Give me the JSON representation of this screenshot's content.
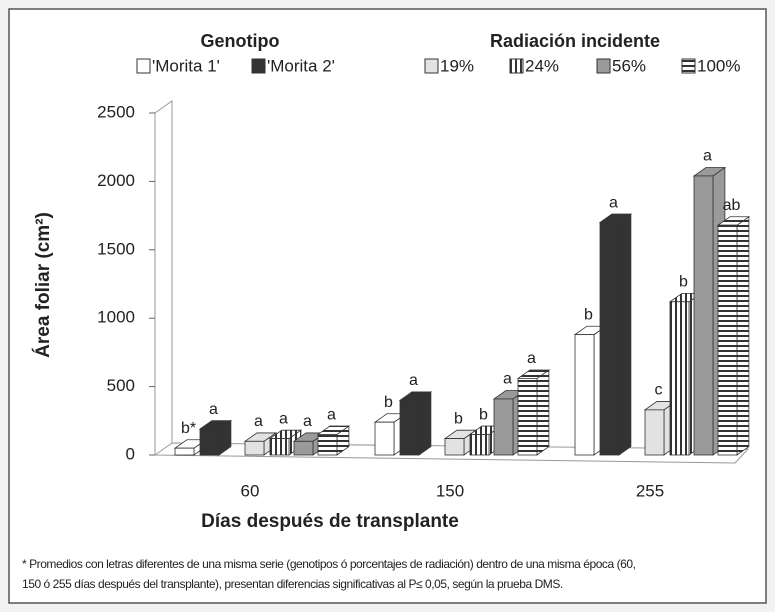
{
  "chart_data": {
    "type": "bar3d",
    "y_label": "Área foliar (cm²)",
    "x_label": "Días después de transplante",
    "legend_titles": [
      "Genotipo",
      "Radiación incidente"
    ],
    "categories": [
      "60",
      "150",
      "255"
    ],
    "ylim": [
      0,
      2500
    ],
    "yticks": [
      0,
      500,
      1000,
      1500,
      2000,
      2500
    ],
    "series": [
      {
        "name": "'Morita 1'",
        "color": "#ffffff",
        "values": [
          50,
          240,
          880
        ],
        "letters": [
          "b*",
          "b",
          "b"
        ]
      },
      {
        "name": "'Morita 2'",
        "color": "#333333",
        "values": [
          190,
          400,
          1700
        ],
        "letters": [
          "a",
          "a",
          "a"
        ]
      },
      {
        "name": "19%",
        "color": "#e2e2e2",
        "values": [
          100,
          120,
          330
        ],
        "letters": [
          "a",
          "b",
          "c"
        ]
      },
      {
        "name": "24%",
        "color": "#ffffff",
        "pattern": "vertical",
        "values": [
          120,
          150,
          1120
        ],
        "letters": [
          "a",
          "b",
          "b"
        ]
      },
      {
        "name": "56%",
        "color": "#9a9a9a",
        "values": [
          100,
          410,
          2040
        ],
        "letters": [
          "a",
          "a",
          "a"
        ]
      },
      {
        "name": "100%",
        "color": "#ffffff",
        "pattern": "horizontal",
        "values": [
          150,
          560,
          1680
        ],
        "letters": [
          "a",
          "a",
          "ab"
        ]
      }
    ],
    "footnote": [
      "* Promedios con letras diferentes de una misma serie (genotipos ó porcentajes de radiación) dentro de una misma época (60,",
      "150 ó 255 días después del transplante), presentan diferencias significativas al P≤ 0,05, según la prueba DMS."
    ]
  }
}
